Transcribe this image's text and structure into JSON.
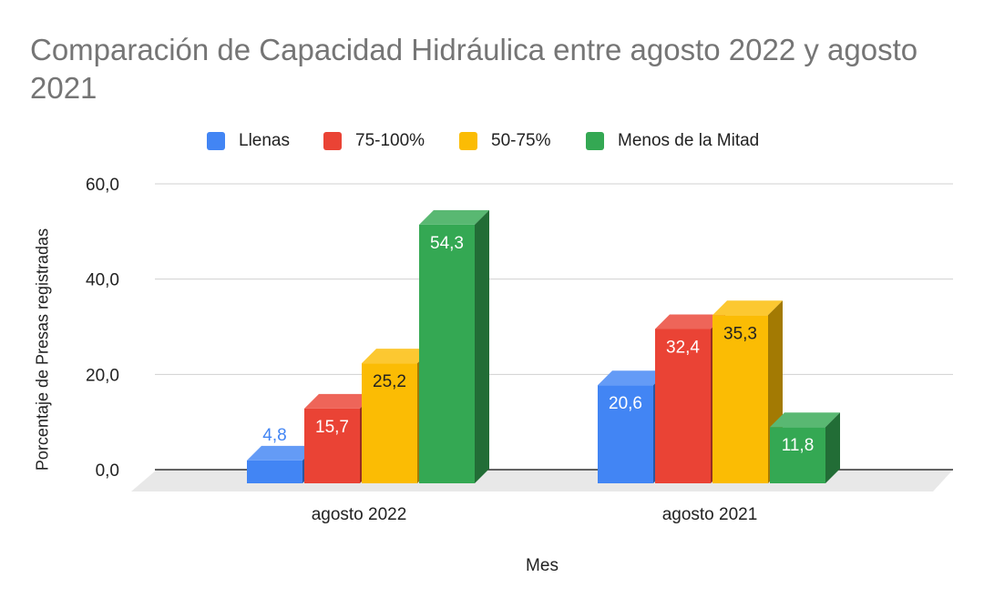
{
  "chart_data": {
    "type": "bar",
    "title": "Comparación de Capacidad Hidráulica entre agosto 2022 y agosto 2021",
    "xlabel": "Mes",
    "ylabel": "Porcentaje de Presas registradas",
    "categories": [
      "agosto 2022",
      "agosto 2021"
    ],
    "series": [
      {
        "name": "Llenas",
        "color": "#4285f4",
        "values": [
          4.8,
          20.6
        ],
        "labels": [
          "4,8",
          "20,6"
        ]
      },
      {
        "name": "75-100%",
        "color": "#ea4335",
        "values": [
          15.7,
          32.4
        ],
        "labels": [
          "15,7",
          "32,4"
        ]
      },
      {
        "name": "50-75%",
        "color": "#fbbc04",
        "values": [
          25.2,
          35.3
        ],
        "labels": [
          "25,2",
          "35,3"
        ]
      },
      {
        "name": "Menos de la Mitad",
        "color": "#34a853",
        "values": [
          54.3,
          11.8
        ],
        "labels": [
          "54,3",
          "11,8"
        ]
      }
    ],
    "y_ticks": [
      "0,0",
      "20,0",
      "40,0",
      "60,0"
    ],
    "ylim": [
      0,
      60
    ],
    "grid": true,
    "legend_position": "top",
    "style": "3d-bar"
  }
}
